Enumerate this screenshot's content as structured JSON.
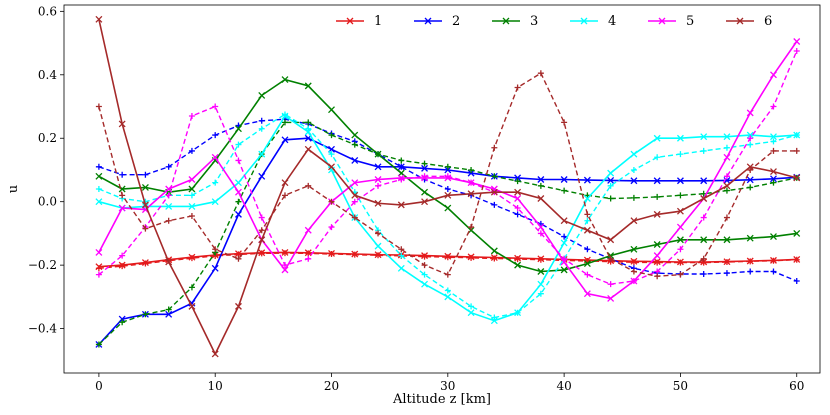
{
  "chart_data": {
    "type": "line",
    "title": "",
    "xlabel": "Altitude z [km]",
    "ylabel": "u",
    "xlim": [
      -3,
      62
    ],
    "ylim": [
      -0.54,
      0.62
    ],
    "xticks": [
      0,
      10,
      20,
      30,
      40,
      50,
      60
    ],
    "yticks": [
      -0.4,
      -0.2,
      0.0,
      0.2,
      0.4,
      0.6
    ],
    "xtick_labels": [
      "0",
      "10",
      "20",
      "30",
      "40",
      "50",
      "60"
    ],
    "ytick_labels": [
      "−0.4",
      "−0.2",
      "0.0",
      "0.2",
      "0.4",
      "0.6"
    ],
    "grid": false,
    "legend_position": "top-right",
    "x": [
      0,
      2,
      4,
      6,
      8,
      10,
      12,
      14,
      16,
      18,
      20,
      22,
      24,
      26,
      28,
      30,
      32,
      34,
      36,
      38,
      40,
      42,
      44,
      46,
      48,
      50,
      52,
      54,
      56,
      58,
      60
    ],
    "series": [
      {
        "name": "1",
        "color": "#e41a1c",
        "solid": [
          -0.205,
          -0.2,
          -0.192,
          -0.183,
          -0.175,
          -0.168,
          -0.164,
          -0.161,
          -0.16,
          -0.161,
          -0.163,
          -0.165,
          -0.167,
          -0.168,
          -0.17,
          -0.172,
          -0.174,
          -0.176,
          -0.178,
          -0.18,
          -0.182,
          -0.184,
          -0.186,
          -0.188,
          -0.189,
          -0.19,
          -0.19,
          -0.189,
          -0.187,
          -0.185,
          -0.182
        ],
        "dashed": [
          -0.21,
          -0.203,
          -0.195,
          -0.186,
          -0.178,
          -0.171,
          -0.166,
          -0.163,
          -0.162,
          -0.163,
          -0.165,
          -0.167,
          -0.169,
          -0.171,
          -0.173,
          -0.175,
          -0.177,
          -0.179,
          -0.181,
          -0.183,
          -0.185,
          -0.187,
          -0.189,
          -0.191,
          -0.192,
          -0.192,
          -0.192,
          -0.19,
          -0.188,
          -0.186,
          -0.183
        ]
      },
      {
        "name": "2",
        "color": "#0000ff",
        "solid": [
          -0.45,
          -0.37,
          -0.355,
          -0.355,
          -0.32,
          -0.21,
          -0.04,
          0.08,
          0.195,
          0.2,
          0.165,
          0.13,
          0.11,
          0.11,
          0.105,
          0.1,
          0.09,
          0.08,
          0.075,
          0.07,
          0.07,
          0.068,
          0.067,
          0.066,
          0.066,
          0.066,
          0.066,
          0.067,
          0.069,
          0.072,
          0.077
        ],
        "dashed": [
          0.11,
          0.085,
          0.085,
          0.11,
          0.16,
          0.21,
          0.24,
          0.255,
          0.26,
          0.245,
          0.215,
          0.19,
          0.15,
          0.11,
          0.07,
          0.04,
          0.02,
          -0.01,
          -0.04,
          -0.07,
          -0.11,
          -0.15,
          -0.18,
          -0.21,
          -0.225,
          -0.228,
          -0.228,
          -0.225,
          -0.22,
          -0.22,
          -0.25
        ]
      },
      {
        "name": "3",
        "color": "#008000",
        "solid": [
          0.08,
          0.04,
          0.045,
          0.03,
          0.04,
          0.13,
          0.23,
          0.335,
          0.385,
          0.365,
          0.29,
          0.21,
          0.15,
          0.09,
          0.03,
          -0.02,
          -0.09,
          -0.155,
          -0.2,
          -0.22,
          -0.215,
          -0.195,
          -0.17,
          -0.15,
          -0.135,
          -0.12,
          -0.12,
          -0.12,
          -0.115,
          -0.11,
          -0.1
        ],
        "dashed": [
          -0.45,
          -0.38,
          -0.355,
          -0.34,
          -0.27,
          -0.16,
          0.0,
          0.15,
          0.25,
          0.25,
          0.21,
          0.18,
          0.15,
          0.13,
          0.12,
          0.11,
          0.1,
          0.08,
          0.065,
          0.05,
          0.035,
          0.02,
          0.01,
          0.012,
          0.015,
          0.02,
          0.025,
          0.035,
          0.045,
          0.06,
          0.075
        ]
      },
      {
        "name": "4",
        "color": "#00ffff",
        "solid": [
          0.0,
          -0.02,
          -0.015,
          -0.015,
          -0.015,
          0.0,
          0.06,
          0.15,
          0.27,
          0.22,
          0.1,
          -0.05,
          -0.14,
          -0.21,
          -0.26,
          -0.3,
          -0.35,
          -0.375,
          -0.35,
          -0.26,
          -0.13,
          0.01,
          0.09,
          0.15,
          0.2,
          0.2,
          0.205,
          0.205,
          0.21,
          0.205,
          0.21
        ],
        "dashed": [
          0.04,
          0.01,
          0.0,
          0.02,
          0.02,
          0.06,
          0.18,
          0.23,
          0.275,
          0.23,
          0.15,
          0.03,
          -0.09,
          -0.17,
          -0.23,
          -0.28,
          -0.33,
          -0.365,
          -0.35,
          -0.29,
          -0.18,
          -0.06,
          0.05,
          0.1,
          0.14,
          0.15,
          0.16,
          0.17,
          0.18,
          0.19,
          0.21
        ]
      },
      {
        "name": "5",
        "color": "#ff00ff",
        "solid": [
          -0.16,
          -0.02,
          -0.025,
          0.04,
          0.07,
          0.14,
          0.03,
          -0.12,
          -0.215,
          -0.09,
          0.0,
          0.06,
          0.07,
          0.075,
          0.075,
          0.075,
          0.06,
          0.04,
          0.01,
          -0.08,
          -0.19,
          -0.29,
          -0.305,
          -0.25,
          -0.17,
          -0.08,
          0.01,
          0.14,
          0.28,
          0.4,
          0.505
        ],
        "dashed": [
          -0.23,
          -0.17,
          -0.08,
          0.02,
          0.27,
          0.3,
          0.13,
          -0.05,
          -0.2,
          -0.18,
          -0.08,
          0.0,
          0.05,
          0.07,
          0.08,
          0.08,
          0.06,
          0.03,
          -0.02,
          -0.1,
          -0.18,
          -0.23,
          -0.26,
          -0.25,
          -0.22,
          -0.15,
          -0.05,
          0.08,
          0.2,
          0.3,
          0.475
        ]
      },
      {
        "name": "6",
        "color": "#a52a2a",
        "solid": [
          0.575,
          0.245,
          -0.01,
          -0.19,
          -0.33,
          -0.48,
          -0.33,
          -0.12,
          0.06,
          0.165,
          0.11,
          0.02,
          -0.005,
          -0.01,
          0.0,
          0.02,
          0.025,
          0.03,
          0.03,
          0.01,
          -0.06,
          -0.09,
          -0.12,
          -0.06,
          -0.04,
          -0.03,
          0.01,
          0.05,
          0.11,
          0.095,
          0.075
        ],
        "dashed": [
          0.3,
          0.02,
          -0.085,
          -0.06,
          -0.045,
          -0.15,
          -0.18,
          -0.09,
          0.02,
          0.05,
          0.0,
          -0.05,
          -0.1,
          -0.15,
          -0.2,
          -0.23,
          -0.08,
          0.17,
          0.36,
          0.405,
          0.25,
          -0.04,
          -0.18,
          -0.22,
          -0.235,
          -0.23,
          -0.18,
          -0.05,
          0.1,
          0.16,
          0.16
        ]
      }
    ]
  }
}
